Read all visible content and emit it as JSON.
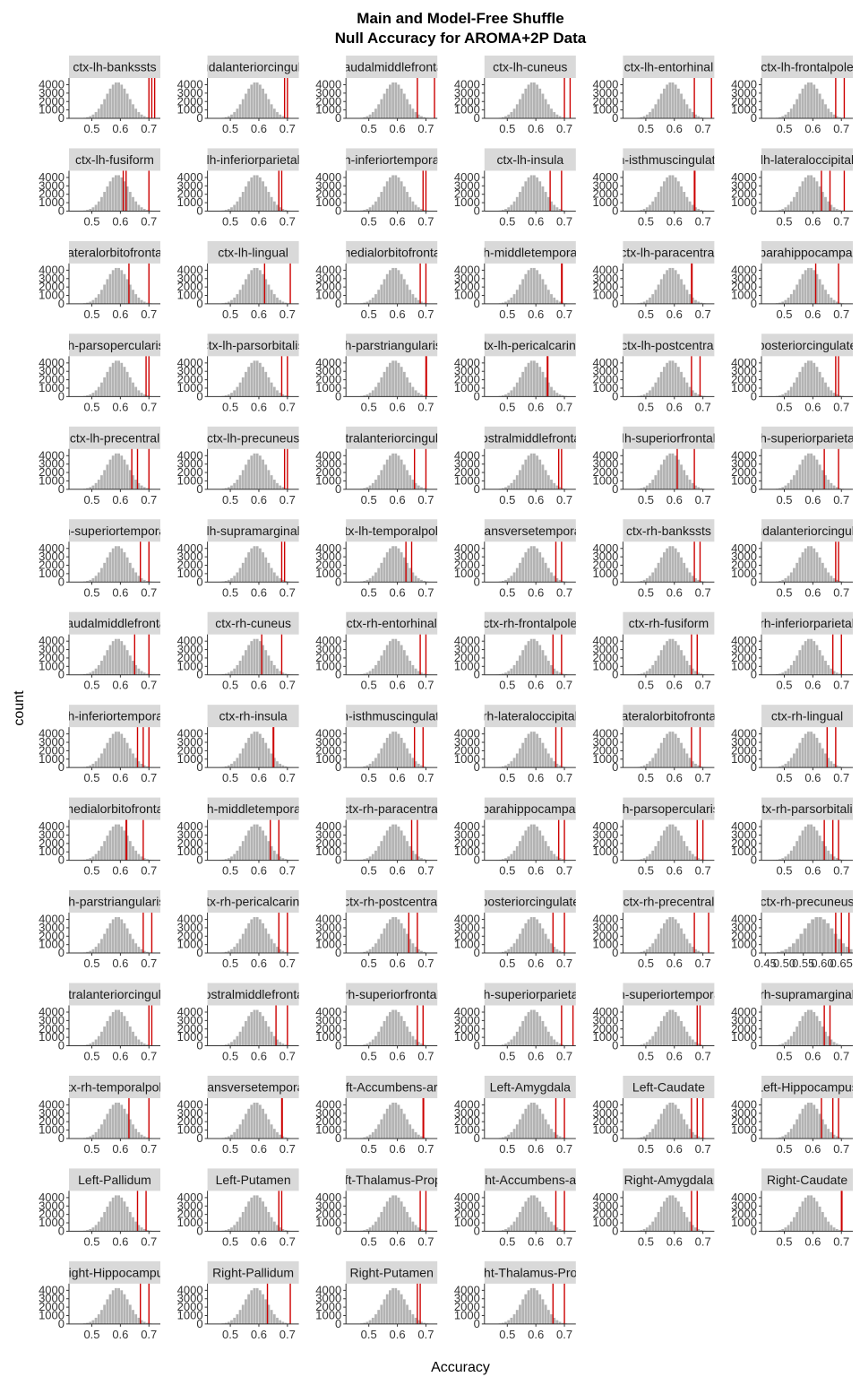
{
  "chart_data": {
    "type": "histogram-facets",
    "title": "Main and Model-Free Shuffle",
    "subtitle": "Null Accuracy for AROMA+2P Data",
    "xlabel": "Accuracy",
    "ylabel": "count",
    "ylim": [
      0,
      4800
    ],
    "y_ticks": [
      0,
      1000,
      2000,
      3000,
      4000
    ],
    "y_tick_labels": [
      "0",
      "1000",
      "2000",
      "3000",
      "4000"
    ],
    "default_xlim": [
      0.42,
      0.74
    ],
    "default_x_ticks": [
      0.5,
      0.6,
      0.7
    ],
    "default_x_tick_labels": [
      "0.5",
      "0.6",
      "0.7"
    ],
    "histogram_bin_width": 0.01,
    "null_mean": 0.59,
    "null_sd": 0.04,
    "null_peak": 4300,
    "colors": {
      "histogram": "#b3b3b3",
      "observed_line": "#cc0000",
      "strip": "#d9d9d9"
    },
    "columns": 6,
    "panels": [
      {
        "label": "ctx-lh-bankssts",
        "lines": [
          0.7,
          0.71,
          0.72
        ]
      },
      {
        "label": "caudalanteriorcingulate",
        "lines": [
          0.69,
          0.7
        ]
      },
      {
        "label": "caudalmiddlefrontal",
        "lines": [
          0.67,
          0.73
        ]
      },
      {
        "label": "ctx-lh-cuneus",
        "lines": [
          0.7,
          0.72
        ]
      },
      {
        "label": "ctx-lh-entorhinal",
        "lines": [
          0.67,
          0.73
        ]
      },
      {
        "label": "ctx-lh-frontalpole",
        "lines": [
          0.68,
          0.71
        ]
      },
      {
        "label": "ctx-lh-fusiform",
        "lines": [
          0.61,
          0.62,
          0.7
        ]
      },
      {
        "label": "lh-inferiorparietal",
        "lines": [
          0.67,
          0.68
        ]
      },
      {
        "label": "lh-inferiortemporal",
        "lines": [
          0.69,
          0.7
        ]
      },
      {
        "label": "ctx-lh-insula",
        "lines": [
          0.65,
          0.69
        ]
      },
      {
        "label": "lh-isthmuscingulate",
        "lines": [
          0.67,
          0.672
        ]
      },
      {
        "label": "lh-lateraloccipital",
        "lines": [
          0.63,
          0.66,
          0.71
        ]
      },
      {
        "label": "lateralorbitofrontal",
        "lines": [
          0.63,
          0.7
        ]
      },
      {
        "label": "ctx-lh-lingual",
        "lines": [
          0.62,
          0.71
        ]
      },
      {
        "label": "medialorbitofrontal",
        "lines": [
          0.68,
          0.7
        ]
      },
      {
        "label": "lh-middletemporal",
        "lines": [
          0.69,
          0.692
        ]
      },
      {
        "label": "ctx-lh-paracentral",
        "lines": [
          0.66,
          0.662
        ]
      },
      {
        "label": "parahippocampal",
        "lines": [
          0.61,
          0.69
        ]
      },
      {
        "label": "lh-parsopercularis",
        "lines": [
          0.69,
          0.7
        ]
      },
      {
        "label": "ctx-lh-parsorbitalis",
        "lines": [
          0.68,
          0.7
        ]
      },
      {
        "label": "lh-parstriangularis",
        "lines": [
          0.7,
          0.702
        ]
      },
      {
        "label": "ctx-lh-pericalcarine",
        "lines": [
          0.64,
          0.642
        ]
      },
      {
        "label": "ctx-lh-postcentral",
        "lines": [
          0.66,
          0.69
        ]
      },
      {
        "label": "posteriorcingulate",
        "lines": [
          0.68,
          0.69
        ]
      },
      {
        "label": "ctx-lh-precentral",
        "lines": [
          0.64,
          0.66,
          0.7
        ]
      },
      {
        "label": "ctx-lh-precuneus",
        "lines": [
          0.69,
          0.7
        ]
      },
      {
        "label": "rostralanteriorcingulate",
        "lines": [
          0.66,
          0.7
        ]
      },
      {
        "label": "rostralmiddlefrontal",
        "lines": [
          0.68,
          0.69
        ]
      },
      {
        "label": "lh-superiorfrontal",
        "lines": [
          0.61,
          0.67
        ]
      },
      {
        "label": "lh-superiorparietal",
        "lines": [
          0.64,
          0.69
        ]
      },
      {
        "label": "lh-superiortemporal",
        "lines": [
          0.67,
          0.7
        ]
      },
      {
        "label": "lh-supramarginal",
        "lines": [
          0.68,
          0.69
        ]
      },
      {
        "label": "ctx-lh-temporalpole",
        "lines": [
          0.63,
          0.65
        ]
      },
      {
        "label": "transversetemporal",
        "lines": [
          0.67,
          0.69
        ]
      },
      {
        "label": "ctx-rh-bankssts",
        "lines": [
          0.67,
          0.69
        ]
      },
      {
        "label": "caudalanteriorcingulate",
        "lines": [
          0.68,
          0.69
        ]
      },
      {
        "label": "caudalmiddlefrontal",
        "lines": [
          0.65,
          0.7
        ]
      },
      {
        "label": "ctx-rh-cuneus",
        "lines": [
          0.61,
          0.68
        ]
      },
      {
        "label": "ctx-rh-entorhinal",
        "lines": [
          0.68,
          0.7
        ]
      },
      {
        "label": "ctx-rh-frontalpole",
        "lines": [
          0.66,
          0.69
        ]
      },
      {
        "label": "ctx-rh-fusiform",
        "lines": [
          0.66,
          0.68
        ]
      },
      {
        "label": "rh-inferiorparietal",
        "lines": [
          0.67,
          0.7
        ]
      },
      {
        "label": "rh-inferiortemporal",
        "lines": [
          0.66,
          0.68,
          0.7
        ]
      },
      {
        "label": "ctx-rh-insula",
        "lines": [
          0.65,
          0.652
        ]
      },
      {
        "label": "rh-isthmuscingulate",
        "lines": [
          0.66,
          0.69
        ]
      },
      {
        "label": "rh-lateraloccipital",
        "lines": [
          0.67,
          0.69
        ]
      },
      {
        "label": "lateralorbitofrontal",
        "lines": [
          0.66,
          0.69
        ]
      },
      {
        "label": "ctx-rh-lingual",
        "lines": [
          0.65,
          0.68
        ]
      },
      {
        "label": "medialorbitofrontal",
        "lines": [
          0.62,
          0.622,
          0.68
        ]
      },
      {
        "label": "rh-middletemporal",
        "lines": [
          0.64,
          0.67
        ]
      },
      {
        "label": "ctx-rh-paracentral",
        "lines": [
          0.65,
          0.67
        ]
      },
      {
        "label": "parahippocampal",
        "lines": [
          0.68,
          0.7
        ]
      },
      {
        "label": "rh-parsopercularis",
        "lines": [
          0.68,
          0.7
        ]
      },
      {
        "label": "ctx-rh-parsorbitalis",
        "lines": [
          0.64,
          0.67,
          0.69
        ]
      },
      {
        "label": "rh-parstriangularis",
        "lines": [
          0.68,
          0.71
        ]
      },
      {
        "label": "ctx-rh-pericalcarine",
        "lines": [
          0.67,
          0.7
        ]
      },
      {
        "label": "ctx-rh-postcentral",
        "lines": [
          0.64,
          0.67
        ]
      },
      {
        "label": "posteriorcingulate",
        "lines": [
          0.66,
          0.7
        ]
      },
      {
        "label": "ctx-rh-precentral",
        "lines": [
          0.67,
          0.72
        ]
      },
      {
        "label": "ctx-rh-precuneus",
        "lines": [
          0.635,
          0.65,
          0.67
        ],
        "xlim": [
          0.44,
          0.68
        ],
        "x_ticks": [
          0.45,
          0.5,
          0.55,
          0.6,
          0.65
        ],
        "x_tick_labels": [
          "0.45",
          "0.50",
          "0.55",
          "0.60",
          "0.65"
        ]
      },
      {
        "label": "rostralanteriorcingulate",
        "lines": [
          0.7,
          0.71
        ]
      },
      {
        "label": "rostralmiddlefrontal",
        "lines": [
          0.66,
          0.7
        ]
      },
      {
        "label": "rh-superiorfrontal",
        "lines": [
          0.67,
          0.69
        ]
      },
      {
        "label": "rh-superiorparietal",
        "lines": [
          0.69,
          0.73
        ]
      },
      {
        "label": "rh-superiortemporal",
        "lines": [
          0.68,
          0.69
        ]
      },
      {
        "label": "rh-supramarginal",
        "lines": [
          0.64,
          0.66
        ]
      },
      {
        "label": "ctx-rh-temporalpole",
        "lines": [
          0.63,
          0.7
        ]
      },
      {
        "label": "transversetemporal",
        "lines": [
          0.68,
          0.682
        ]
      },
      {
        "label": "Left-Accumbens-area",
        "lines": [
          0.69,
          0.692
        ]
      },
      {
        "label": "Left-Amygdala",
        "lines": [
          0.67,
          0.7
        ]
      },
      {
        "label": "Left-Caudate",
        "lines": [
          0.66,
          0.68,
          0.7
        ]
      },
      {
        "label": "Left-Hippocampus",
        "lines": [
          0.63,
          0.67,
          0.69
        ]
      },
      {
        "label": "Left-Pallidum",
        "lines": [
          0.66,
          0.69
        ]
      },
      {
        "label": "Left-Putamen",
        "lines": [
          0.67,
          0.68
        ]
      },
      {
        "label": "Left-Thalamus-Proper",
        "lines": [
          0.68,
          0.7
        ]
      },
      {
        "label": "Right-Accumbens-area",
        "lines": [
          0.67,
          0.7
        ]
      },
      {
        "label": "Right-Amygdala",
        "lines": [
          0.66,
          0.68
        ]
      },
      {
        "label": "Right-Caudate",
        "lines": [
          0.7,
          0.702
        ]
      },
      {
        "label": "Right-Hippocampus",
        "lines": [
          0.67,
          0.7
        ]
      },
      {
        "label": "Right-Pallidum",
        "lines": [
          0.63,
          0.71
        ]
      },
      {
        "label": "Right-Putamen",
        "lines": [
          0.67,
          0.68
        ]
      },
      {
        "label": "Right-Thalamus-Proper",
        "lines": [
          0.66,
          0.7
        ]
      }
    ]
  }
}
